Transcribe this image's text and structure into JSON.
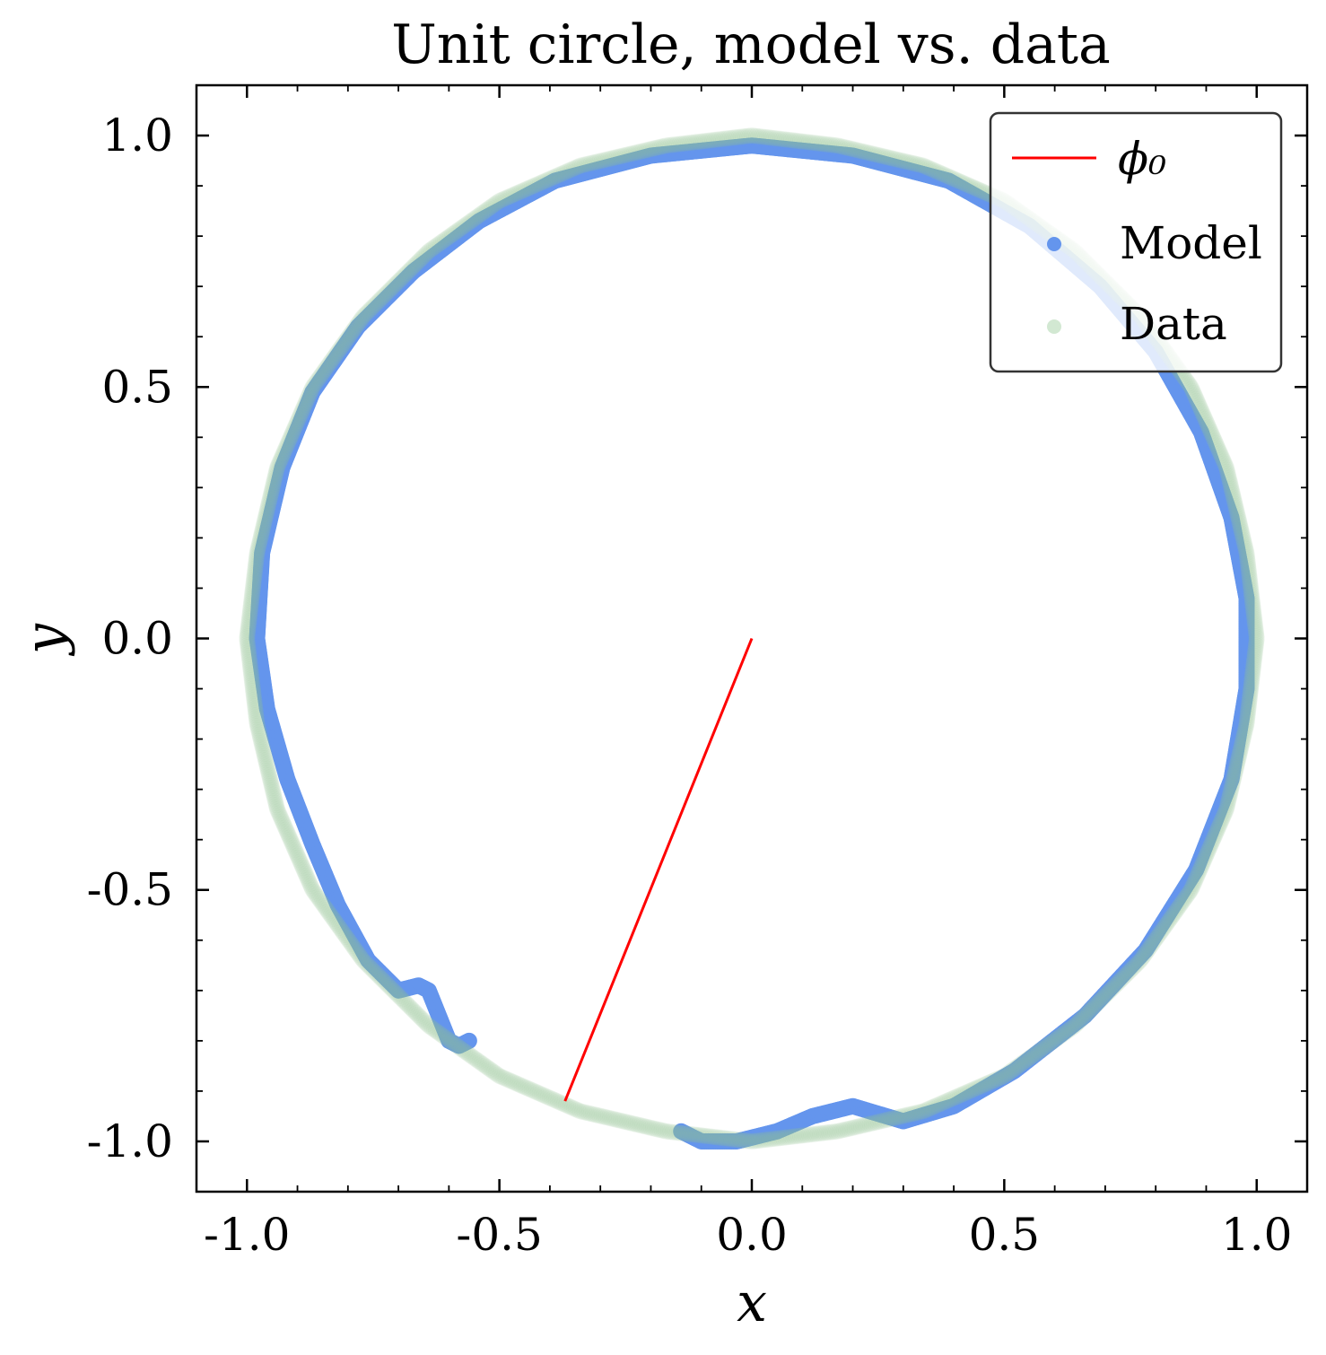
{
  "chart_data": {
    "type": "scatter",
    "title": "Unit circle, model vs. data",
    "xlabel": "x",
    "ylabel": "y",
    "xlim": [
      -1.1,
      1.1
    ],
    "ylim": [
      -1.1,
      1.1
    ],
    "x_ticks": [
      -1.0,
      -0.5,
      0.0,
      0.5,
      1.0
    ],
    "y_ticks": [
      -1.0,
      -0.5,
      0.0,
      0.5,
      1.0
    ],
    "x_tick_labels": [
      "-1.0",
      "-0.5",
      "0.0",
      "0.5",
      "1.0"
    ],
    "y_tick_labels": [
      "-1.0",
      "-0.5",
      "0.0",
      "0.5",
      "1.0"
    ],
    "grid": false,
    "legend": {
      "position": "top-right",
      "entries": [
        {
          "label": "ϕ₀",
          "kind": "line",
          "color": "#ff0000"
        },
        {
          "label": "Model",
          "kind": "marker",
          "color": "#6495ed"
        },
        {
          "label": "Data",
          "kind": "marker",
          "color": "#8fc68f"
        }
      ]
    },
    "series": [
      {
        "name": "ϕ₀",
        "kind": "line",
        "color": "#ff0000",
        "points": [
          [
            0.0,
            0.0
          ],
          [
            -0.37,
            -0.92
          ]
        ]
      },
      {
        "name": "Model",
        "kind": "scatter",
        "color": "#6495ed",
        "points": [
          [
            -0.56,
            -0.8
          ],
          [
            -0.58,
            -0.81
          ],
          [
            -0.6,
            -0.8
          ],
          [
            -0.62,
            -0.75
          ],
          [
            -0.64,
            -0.7
          ],
          [
            -0.66,
            -0.69
          ],
          [
            -0.7,
            -0.7
          ],
          [
            -0.76,
            -0.64
          ],
          [
            -0.82,
            -0.53
          ],
          [
            -0.87,
            -0.41
          ],
          [
            -0.92,
            -0.28
          ],
          [
            -0.96,
            -0.14
          ],
          [
            -0.98,
            0.0
          ],
          [
            -0.97,
            0.17
          ],
          [
            -0.93,
            0.34
          ],
          [
            -0.87,
            0.49
          ],
          [
            -0.78,
            0.62
          ],
          [
            -0.67,
            0.73
          ],
          [
            -0.54,
            0.83
          ],
          [
            -0.39,
            0.91
          ],
          [
            -0.2,
            0.96
          ],
          [
            0.0,
            0.98
          ],
          [
            0.2,
            0.96
          ],
          [
            0.39,
            0.91
          ],
          [
            0.55,
            0.82
          ],
          [
            0.69,
            0.7
          ],
          [
            0.8,
            0.57
          ],
          [
            0.89,
            0.41
          ],
          [
            0.95,
            0.24
          ],
          [
            0.98,
            0.08
          ],
          [
            0.98,
            -0.1
          ],
          [
            0.95,
            -0.28
          ],
          [
            0.88,
            -0.46
          ],
          [
            0.78,
            -0.62
          ],
          [
            0.66,
            -0.75
          ],
          [
            0.52,
            -0.86
          ],
          [
            0.4,
            -0.93
          ],
          [
            0.3,
            -0.96
          ],
          [
            0.2,
            -0.93
          ],
          [
            0.12,
            -0.95
          ],
          [
            0.05,
            -0.98
          ],
          [
            -0.03,
            -1.0
          ],
          [
            -0.1,
            -1.0
          ],
          [
            -0.14,
            -0.98
          ]
        ]
      },
      {
        "name": "Data",
        "kind": "scatter",
        "color": "#8fc68f",
        "points": [
          [
            1.0,
            0.0
          ],
          [
            0.98,
            0.17
          ],
          [
            0.94,
            0.34
          ],
          [
            0.87,
            0.5
          ],
          [
            0.77,
            0.64
          ],
          [
            0.64,
            0.77
          ],
          [
            0.5,
            0.87
          ],
          [
            0.34,
            0.94
          ],
          [
            0.17,
            0.98
          ],
          [
            0.0,
            1.0
          ],
          [
            -0.17,
            0.98
          ],
          [
            -0.34,
            0.94
          ],
          [
            -0.5,
            0.87
          ],
          [
            -0.64,
            0.77
          ],
          [
            -0.77,
            0.64
          ],
          [
            -0.87,
            0.5
          ],
          [
            -0.94,
            0.34
          ],
          [
            -0.98,
            0.17
          ],
          [
            -1.0,
            0.0
          ],
          [
            -0.98,
            -0.17
          ],
          [
            -0.94,
            -0.34
          ],
          [
            -0.87,
            -0.5
          ],
          [
            -0.77,
            -0.64
          ],
          [
            -0.64,
            -0.77
          ],
          [
            -0.5,
            -0.87
          ],
          [
            -0.34,
            -0.94
          ],
          [
            -0.17,
            -0.98
          ],
          [
            0.0,
            -1.0
          ],
          [
            0.17,
            -0.98
          ],
          [
            0.34,
            -0.94
          ],
          [
            0.5,
            -0.87
          ],
          [
            0.64,
            -0.77
          ],
          [
            0.77,
            -0.64
          ],
          [
            0.87,
            -0.5
          ],
          [
            0.94,
            -0.34
          ],
          [
            0.98,
            -0.17
          ]
        ]
      }
    ]
  }
}
